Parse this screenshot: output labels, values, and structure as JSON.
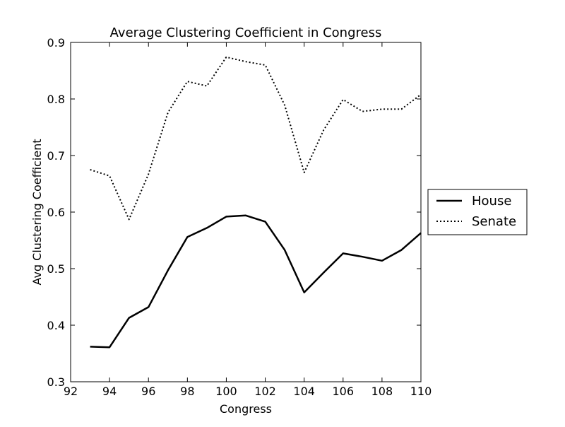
{
  "chart_data": {
    "type": "line",
    "title": "Average Clustering Coefficient in Congress",
    "xlabel": "Congress",
    "ylabel": "Avg Clustering Coefficient",
    "xlim": [
      92,
      110
    ],
    "ylim": [
      0.3,
      0.9
    ],
    "xticks": [
      92,
      94,
      96,
      98,
      100,
      102,
      104,
      106,
      108,
      110
    ],
    "yticks": [
      0.3,
      0.4,
      0.5,
      0.6,
      0.7,
      0.8,
      0.9
    ],
    "grid": false,
    "legend_position": "outside-right",
    "series": [
      {
        "name": "House",
        "style": "solid",
        "color": "#000000",
        "x": [
          93,
          94,
          95,
          96,
          97,
          98,
          99,
          100,
          101,
          102,
          103,
          104,
          105,
          106,
          107,
          108,
          109,
          110
        ],
        "values": [
          0.362,
          0.361,
          0.413,
          0.432,
          0.497,
          0.556,
          0.572,
          0.592,
          0.594,
          0.583,
          0.533,
          0.458,
          0.493,
          0.527,
          0.521,
          0.514,
          0.533,
          0.563
        ]
      },
      {
        "name": "Senate",
        "style": "dotted",
        "color": "#000000",
        "x": [
          93,
          94,
          95,
          96,
          97,
          98,
          99,
          100,
          101,
          102,
          103,
          104,
          105,
          106,
          107,
          108,
          109,
          110
        ],
        "values": [
          0.675,
          0.664,
          0.587,
          0.667,
          0.776,
          0.831,
          0.823,
          0.874,
          0.866,
          0.86,
          0.789,
          0.67,
          0.745,
          0.799,
          0.778,
          0.782,
          0.782,
          0.808
        ]
      }
    ]
  }
}
